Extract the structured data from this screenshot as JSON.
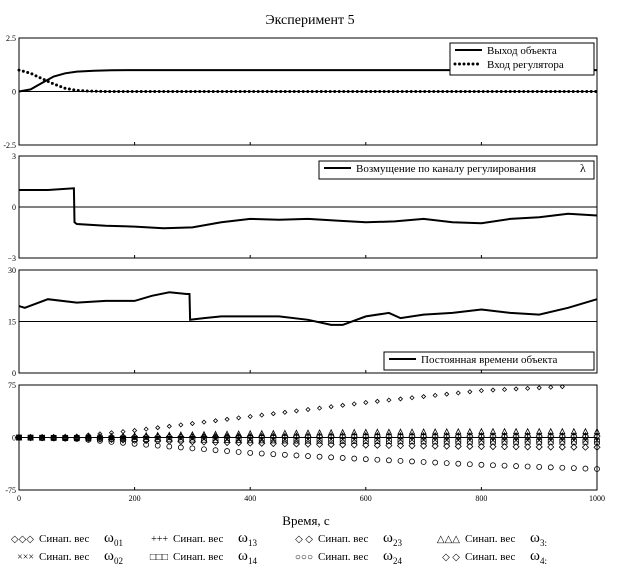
{
  "chart_data": {
    "type": "line",
    "title": "Эксперимент 5",
    "xlabel": "Время, с",
    "x_ticks": [
      "0",
      "200",
      "400",
      "600",
      "800",
      "1000"
    ],
    "xlim": [
      0,
      1000
    ],
    "panels": [
      {
        "ylim": [
          -2.5,
          2.5
        ],
        "y_ticks": [
          "2.5",
          "0",
          "-2.5"
        ],
        "reference_line": 0,
        "legend": [
          {
            "label": "Выход объекта",
            "style": "solid"
          },
          {
            "label": "Вход регулятора",
            "style": "dotted"
          }
        ],
        "series": [
          {
            "name": "Выход объекта",
            "style": "solid",
            "x": [
              0,
              20,
              40,
              60,
              80,
              100,
              130,
              160,
              200,
              1000
            ],
            "y": [
              0,
              0.1,
              0.4,
              0.7,
              0.85,
              0.93,
              0.97,
              0.99,
              1.0,
              1.0
            ]
          },
          {
            "name": "Вход регулятора",
            "style": "dotted",
            "x": [
              0,
              20,
              40,
              60,
              80,
              100,
              120,
              150,
              1000
            ],
            "y": [
              1.0,
              0.85,
              0.6,
              0.35,
              0.15,
              0.05,
              0.02,
              0,
              0
            ]
          }
        ]
      },
      {
        "ylim": [
          -3,
          3
        ],
        "y_ticks": [
          "3",
          "0",
          "−3"
        ],
        "reference_line": 0,
        "legend": [
          {
            "label": "Возмущение по каналу регулирования",
            "symbol": "λ",
            "style": "solid"
          }
        ],
        "series": [
          {
            "name": "Возмущение по каналу регулирования",
            "style": "solid",
            "x": [
              0,
              50,
              95,
              96,
              100,
              150,
              200,
              250,
              300,
              350,
              400,
              450,
              500,
              550,
              600,
              650,
              700,
              750,
              800,
              850,
              900,
              950,
              1000
            ],
            "y": [
              1.0,
              1.0,
              1.1,
              -0.9,
              -1.0,
              -1.1,
              -1.15,
              -1.25,
              -1.2,
              -0.9,
              -0.7,
              -0.75,
              -0.7,
              -0.8,
              -0.9,
              -0.85,
              -0.7,
              -0.9,
              -0.95,
              -0.7,
              -0.6,
              -0.4,
              -0.5
            ]
          }
        ]
      },
      {
        "ylim": [
          0,
          30
        ],
        "y_ticks": [
          "30",
          "15",
          "0"
        ],
        "reference_line": 15,
        "legend": [
          {
            "label": "Постоянная времени объекта",
            "style": "solid"
          }
        ],
        "series": [
          {
            "name": "Постоянная времени объекта",
            "style": "solid",
            "x": [
              0,
              10,
              50,
              100,
              150,
              200,
              230,
              260,
              290,
              295,
              296,
              320,
              350,
              400,
              450,
              500,
              540,
              560,
              600,
              640,
              660,
              700,
              750,
              800,
              850,
              900,
              950,
              1000
            ],
            "y": [
              19.5,
              19,
              21.5,
              20.5,
              21,
              21,
              22.5,
              23.5,
              23,
              23,
              15.5,
              16,
              16.5,
              16.5,
              16.5,
              15.5,
              14,
              14,
              16.5,
              17.5,
              16,
              17,
              17.5,
              18.5,
              17.5,
              17,
              19,
              21.5
            ]
          }
        ]
      },
      {
        "ylim": [
          -75,
          75
        ],
        "y_ticks": [
          "75",
          "0",
          "-75"
        ],
        "reference_line": 0,
        "series": [
          {
            "name": "ω01",
            "marker": "diamond-small",
            "x": [
              0,
              100,
              200,
              400,
              600,
              800,
              950
            ],
            "y": [
              0,
              2,
              10,
              30,
              50,
              67,
              73
            ]
          },
          {
            "name": "ω24",
            "marker": "circle",
            "x": [
              0,
              100,
              200,
              400,
              600,
              800,
              1000
            ],
            "y": [
              0,
              -2,
              -9,
              -22,
              -31,
              -39,
              -45
            ]
          },
          {
            "name": "ω23",
            "marker": "diamond",
            "x": [
              0,
              100,
              200,
              400,
              600,
              800,
              1000
            ],
            "y": [
              0,
              -1,
              -4,
              -8,
              -11,
              -13,
              -14
            ]
          },
          {
            "name": "ω13",
            "marker": "plus",
            "x": [
              0,
              100,
              200,
              400,
              600,
              800,
              1000
            ],
            "y": [
              0,
              0,
              1,
              3,
              4,
              4,
              4
            ]
          },
          {
            "name": "ω3",
            "marker": "triangle",
            "x": [
              0,
              100,
              200,
              400,
              600,
              800,
              1000
            ],
            "y": [
              0,
              1,
              3,
              6,
              8,
              9,
              9
            ]
          },
          {
            "name": "ω02",
            "marker": "x",
            "x": [
              0,
              100,
              200,
              400,
              600,
              800,
              1000
            ],
            "y": [
              0,
              0,
              -1,
              -2,
              -3,
              -4,
              -4
            ]
          },
          {
            "name": "ω14",
            "marker": "square",
            "x": [
              0,
              100,
              200,
              400,
              600,
              800,
              1000
            ],
            "y": [
              0,
              -1,
              -2,
              -4,
              -5,
              -6,
              -6
            ]
          },
          {
            "name": "ω4",
            "marker": "diamond",
            "x": [
              0,
              100,
              200,
              400,
              600,
              800,
              1000
            ],
            "y": [
              0,
              0,
              1,
              1,
              2,
              2,
              2
            ]
          }
        ]
      }
    ],
    "bottom_legend": [
      {
        "marker": "◇◇◇",
        "text": "Синап. вес",
        "symbol": "ω",
        "sub": "01"
      },
      {
        "marker": "+++",
        "text": "Синап. вес",
        "symbol": "ω",
        "sub": "13"
      },
      {
        "marker": "◇ ◇",
        "text": "Синап. вес",
        "symbol": "ω",
        "sub": "23"
      },
      {
        "marker": "△△△",
        "text": "Синап. вес",
        "symbol": "ω",
        "sub": "3:"
      },
      {
        "marker": "×××",
        "text": "Синап. вес",
        "symbol": "ω",
        "sub": "02"
      },
      {
        "marker": "□□□",
        "text": "Синап. вес",
        "symbol": "ω",
        "sub": "14"
      },
      {
        "marker": "○○○",
        "text": "Синап. вес",
        "symbol": "ω",
        "sub": "24"
      },
      {
        "marker": "◇ ◇",
        "text": "Синап. вес",
        "symbol": "ω",
        "sub": "4:"
      }
    ]
  }
}
